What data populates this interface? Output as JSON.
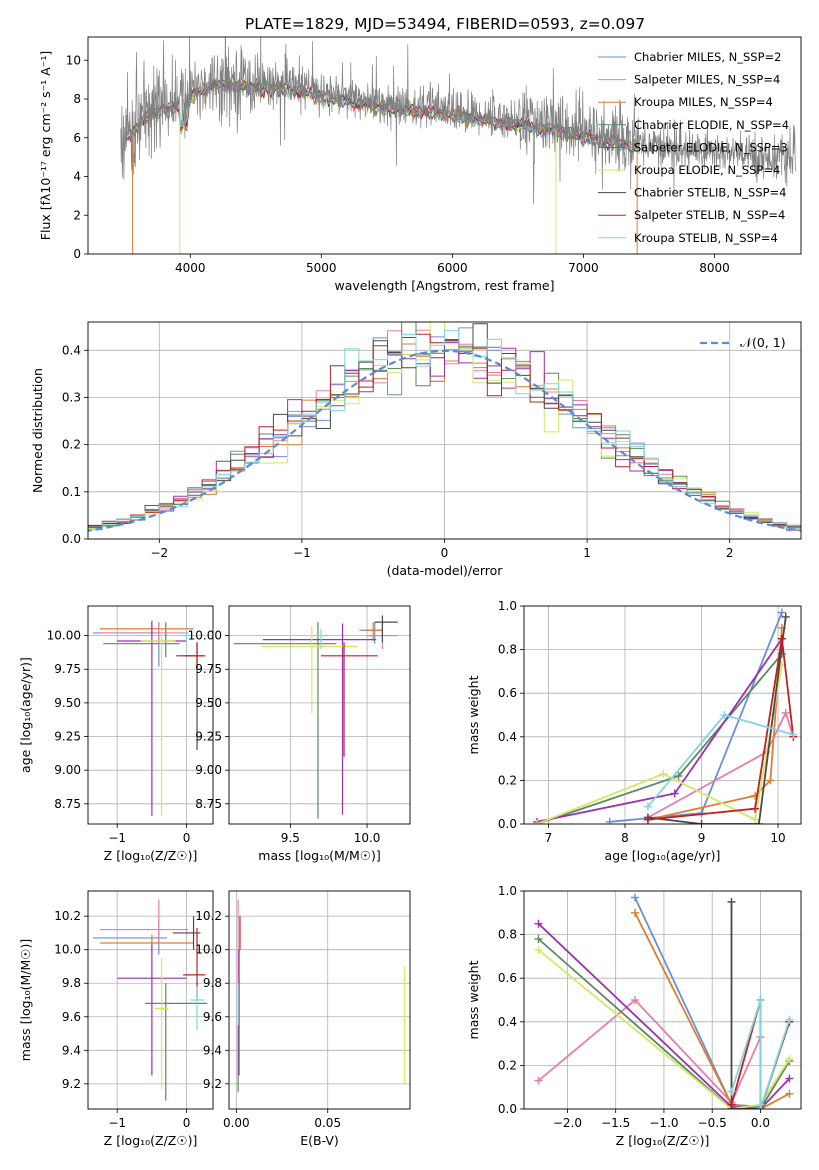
{
  "title": "PLATE=1829, MJD=53494, FIBERID=0593, z=0.097",
  "chart_data": [
    {
      "type": "line",
      "id": "spectrum",
      "title": "PLATE=1829, MJD=53494, FIBERID=0593, z=0.097",
      "xlabel": "wavelength [Angstrom, rest frame]",
      "ylabel": "Flux [fλ10⁻¹⁷ erg cm⁻² s⁻¹ A⁻¹]",
      "xlim": [
        3220,
        8660
      ],
      "ylim": [
        0,
        11.2
      ],
      "xticks": [
        4000,
        5000,
        6000,
        7000,
        8000
      ],
      "yticks": [
        0,
        2,
        4,
        6,
        8,
        10
      ],
      "legend": "top-right",
      "continuum": {
        "x": [
          3470,
          3550,
          3650,
          3800,
          3950,
          4050,
          4200,
          4400,
          4600,
          4800,
          5000,
          5200,
          5400,
          5600,
          5800,
          6000,
          6200,
          6400,
          6600,
          6800,
          7000,
          7200,
          7400,
          7600,
          7800,
          8000,
          8200,
          8400,
          8620
        ],
        "y": [
          6.1,
          6.4,
          7.3,
          7.7,
          8.0,
          8.6,
          9.0,
          8.9,
          8.8,
          8.7,
          8.4,
          8.1,
          7.9,
          7.7,
          7.6,
          7.4,
          7.2,
          7.0,
          6.8,
          6.6,
          6.3,
          6.0,
          5.8,
          5.6,
          5.4,
          5.3,
          5.1,
          5.0,
          4.9
        ]
      },
      "data_xrange": [
        3470,
        8620
      ],
      "model_xrange": [
        3500,
        7420
      ],
      "series": [
        {
          "name": "Chabrier MILES, N_SSP=2",
          "color": "#6a8fd8"
        },
        {
          "name": "Salpeter MILES, N_SSP=4",
          "color": "#e87ea8"
        },
        {
          "name": "Kroupa MILES, N_SSP=4",
          "color": "#e07d2c"
        },
        {
          "name": "Chabrier ELODIE, N_SSP=4",
          "color": "#5a8a5e"
        },
        {
          "name": "Salpeter ELODIE, N_SSP=3",
          "color": "#9b30b0"
        },
        {
          "name": "Kroupa ELODIE, N_SSP=4",
          "color": "#d4e864"
        },
        {
          "name": "Chabrier STELIB, N_SSP=4",
          "color": "#4a4a4a"
        },
        {
          "name": "Salpeter STELIB, N_SSP=4",
          "color": "#c02020"
        },
        {
          "name": "Kroupa STELIB, N_SSP=4",
          "color": "#7fd6de"
        }
      ]
    },
    {
      "type": "histogram",
      "id": "residuals",
      "xlabel": "(data-model)/error",
      "ylabel": "Normed distribution",
      "xlim": [
        -2.5,
        2.5
      ],
      "ylim": [
        0,
        0.46
      ],
      "xticks": [
        -2,
        -1,
        0,
        1,
        2
      ],
      "yticks": [
        0.0,
        0.1,
        0.2,
        0.3,
        0.4
      ],
      "bin_width": 0.1,
      "grid": true,
      "legend": "top-right",
      "reference": {
        "name": "𝒩(0, 1)",
        "color": "#5b8ad1",
        "style": "dashed"
      }
    },
    {
      "type": "scatter",
      "id": "age_vs_z",
      "xlabel": "Z [log₁₀(Z/Z☉)]",
      "ylabel": "age  [log₁₀(age/yr)]",
      "xlim": [
        -1.42,
        0.38
      ],
      "ylim": [
        8.6,
        10.22
      ],
      "xticks": [
        -1,
        0
      ],
      "yticks": [
        8.75,
        9.0,
        9.25,
        9.5,
        9.75,
        10.0
      ],
      "grid": true,
      "points": [
        {
          "x": -0.3,
          "y": 9.94,
          "xerr": [
            0.9,
            0.2
          ],
          "yerr": [
            0.1,
            0.16
          ],
          "color": "#5a8a5e"
        },
        {
          "x": -0.4,
          "y": 10.02,
          "xerr": [
            0.95,
            0.12
          ],
          "yerr": [
            0.25,
            0.08
          ],
          "color": "#6a8fd8"
        },
        {
          "x": -0.4,
          "y": 10.02,
          "xerr": [
            0.85,
            0.42
          ],
          "yerr": [
            0.1,
            0.08
          ],
          "color": "#e87ea8"
        },
        {
          "x": -0.5,
          "y": 10.05,
          "xerr": [
            0.75,
            0.6
          ],
          "yerr": [
            0.05,
            0.05
          ],
          "color": "#e07d2c"
        },
        {
          "x": -0.5,
          "y": 9.96,
          "xerr": [
            0.5,
            0.5
          ],
          "yerr": [
            1.3,
            0.15
          ],
          "color": "#9b30b0"
        },
        {
          "x": -0.36,
          "y": 9.96,
          "xerr": [
            0.3,
            0.2
          ],
          "yerr": [
            1.3,
            0.08
          ],
          "color": "#d4e864"
        },
        {
          "x": 0.15,
          "y": 9.85,
          "xerr": [
            0.3,
            0.1
          ],
          "yerr": [
            0.7,
            0.1
          ],
          "color": "#4a4a4a"
        },
        {
          "x": 0.15,
          "y": 9.85,
          "xerr": [
            0.2,
            0.12
          ],
          "yerr": [
            0.1,
            0.1
          ],
          "color": "#c02020"
        },
        {
          "x": 0.0,
          "y": 10.0,
          "xerr": [
            0.1,
            0.1
          ],
          "yerr": [
            0.05,
            0.05
          ],
          "color": "#7fd6de"
        }
      ]
    },
    {
      "type": "scatter",
      "id": "age_vs_mass",
      "xlabel": "mass [log₁₀(M/M☉)]",
      "ylabel": "",
      "xlim": [
        9.1,
        10.28
      ],
      "ylim": [
        8.6,
        10.22
      ],
      "xticks": [
        9.5,
        10.0
      ],
      "yticks": [
        8.75,
        9.0,
        9.25,
        9.5,
        9.75,
        10.0
      ],
      "grid": true,
      "points": [
        {
          "x": 9.68,
          "y": 9.94,
          "xerr": [
            0.55,
            0.12
          ],
          "yerr": [
            1.3,
            0.16
          ],
          "color": "#5a8a5e"
        },
        {
          "x": 10.05,
          "y": 10.04,
          "xerr": [
            0.1,
            0.05
          ],
          "yerr": [
            0.1,
            0.06
          ],
          "color": "#6a8fd8"
        },
        {
          "x": 10.1,
          "y": 10.0,
          "xerr": [
            0.1,
            0.1
          ],
          "yerr": [
            0.1,
            0.07
          ],
          "color": "#e87ea8"
        },
        {
          "x": 10.04,
          "y": 10.04,
          "xerr": [
            0.06,
            0.06
          ],
          "yerr": [
            0.08,
            0.06
          ],
          "color": "#e07d2c"
        },
        {
          "x": 9.84,
          "y": 9.97,
          "xerr": [
            0.52,
            0.22
          ],
          "yerr": [
            1.3,
            0.12
          ],
          "color": "#9b30b0"
        },
        {
          "x": 9.64,
          "y": 9.92,
          "xerr": [
            0.33,
            0.3
          ],
          "yerr": [
            0.5,
            0.15
          ],
          "color": "#d4e864"
        },
        {
          "x": 10.1,
          "y": 10.1,
          "xerr": [
            0.05,
            0.1
          ],
          "yerr": [
            0.15,
            0.05
          ],
          "color": "#4a4a4a"
        },
        {
          "x": 9.85,
          "y": 9.85,
          "xerr": [
            0.15,
            0.22
          ],
          "yerr": [
            0.75,
            0.1
          ],
          "color": "#c02020"
        },
        {
          "x": 9.7,
          "y": 10.0,
          "xerr": [
            0.05,
            0.05
          ],
          "yerr": [
            0.1,
            0.05
          ],
          "color": "#7fd6de"
        }
      ]
    },
    {
      "type": "line",
      "id": "weight_vs_age",
      "xlabel": "age  [log₁₀(age/yr)]",
      "ylabel": "mass weight",
      "xlim": [
        6.68,
        10.3
      ],
      "ylim": [
        0,
        1.0
      ],
      "xticks": [
        7,
        8,
        9,
        10
      ],
      "yticks": [
        0.0,
        0.2,
        0.4,
        0.6,
        0.8,
        1.0
      ],
      "grid": true,
      "series": [
        {
          "color": "#6a8fd8",
          "x": [
            7.8,
            9.0,
            10.05
          ],
          "y": [
            0.01,
            0.05,
            0.97
          ]
        },
        {
          "color": "#e87ea8",
          "x": [
            8.3,
            9.85,
            10.1,
            10.2
          ],
          "y": [
            0.03,
            0.33,
            0.51,
            0.4
          ]
        },
        {
          "color": "#e07d2c",
          "x": [
            8.3,
            9.7,
            9.9,
            10.05
          ],
          "y": [
            0.02,
            0.13,
            0.2,
            0.9
          ]
        },
        {
          "color": "#5a8a5e",
          "x": [
            6.85,
            8.7,
            10.05
          ],
          "y": [
            0.0,
            0.22,
            0.78
          ]
        },
        {
          "color": "#9b30b0",
          "x": [
            6.85,
            8.65,
            10.05
          ],
          "y": [
            0.01,
            0.14,
            0.85
          ]
        },
        {
          "color": "#d4e864",
          "x": [
            6.85,
            8.5,
            9.7,
            10.05
          ],
          "y": [
            0.0,
            0.23,
            0.02,
            0.73
          ]
        },
        {
          "color": "#4a4a4a",
          "x": [
            8.3,
            9.0,
            9.75,
            10.1
          ],
          "y": [
            0.03,
            0.0,
            0.0,
            0.95
          ]
        },
        {
          "color": "#c02020",
          "x": [
            8.3,
            9.7,
            10.05,
            10.2
          ],
          "y": [
            0.02,
            0.07,
            0.85,
            0.4
          ]
        },
        {
          "color": "#7fd6de",
          "x": [
            8.3,
            9.3,
            10.2
          ],
          "y": [
            0.08,
            0.5,
            0.41
          ]
        }
      ]
    },
    {
      "type": "scatter",
      "id": "mass_vs_z",
      "xlabel": "Z [log₁₀(Z/Z☉)]",
      "ylabel": "mass [log₁₀(M/M☉)]",
      "xlim": [
        -1.42,
        0.38
      ],
      "ylim": [
        9.05,
        10.35
      ],
      "xticks": [
        -1,
        0
      ],
      "yticks": [
        9.2,
        9.4,
        9.6,
        9.8,
        10.0,
        10.2
      ],
      "grid": true,
      "points": [
        {
          "x": -0.3,
          "y": 9.68,
          "xerr": [
            0.3,
            0.6
          ],
          "yerr": [
            0.58,
            0.12
          ],
          "color": "#5a8a5e"
        },
        {
          "x": -0.4,
          "y": 10.07,
          "xerr": [
            0.95,
            0.12
          ],
          "yerr": [
            0.1,
            0.1
          ],
          "color": "#6a8fd8"
        },
        {
          "x": -0.4,
          "y": 10.12,
          "xerr": [
            0.85,
            0.42
          ],
          "yerr": [
            0.1,
            0.18
          ],
          "color": "#e87ea8"
        },
        {
          "x": -0.5,
          "y": 10.04,
          "xerr": [
            0.75,
            0.6
          ],
          "yerr": [
            0.05,
            0.05
          ],
          "color": "#e07d2c"
        },
        {
          "x": -0.5,
          "y": 9.83,
          "xerr": [
            0.5,
            0.5
          ],
          "yerr": [
            0.58,
            0.2
          ],
          "color": "#9b30b0"
        },
        {
          "x": -0.36,
          "y": 9.65,
          "xerr": [
            0.1,
            0.1
          ],
          "yerr": [
            0.48,
            0.3
          ],
          "color": "#d4e864"
        },
        {
          "x": 0.1,
          "y": 10.1,
          "xerr": [
            0.3,
            0.1
          ],
          "yerr": [
            0.1,
            0.1
          ],
          "color": "#4a4a4a"
        },
        {
          "x": 0.15,
          "y": 9.85,
          "xerr": [
            0.2,
            0.12
          ],
          "yerr": [
            0.15,
            0.28
          ],
          "color": "#c02020"
        },
        {
          "x": 0.15,
          "y": 9.7,
          "xerr": [
            0.1,
            0.1
          ],
          "yerr": [
            0.18,
            0.08
          ],
          "color": "#7fd6de"
        }
      ]
    },
    {
      "type": "scatter",
      "id": "mass_vs_ebv",
      "xlabel": "E(B-V)",
      "ylabel": "",
      "xlim": [
        -0.004,
        0.095
      ],
      "ylim": [
        9.05,
        10.35
      ],
      "xticks": [
        0.0,
        0.05
      ],
      "yticks": [
        9.2,
        9.4,
        9.6,
        9.8,
        10.0,
        10.2
      ],
      "grid": true,
      "points": [
        {
          "x": 0.001,
          "y": 9.7,
          "xerr": [
            0,
            0
          ],
          "yerr": [
            0.55,
            0.3
          ],
          "color": "#5a8a5e"
        },
        {
          "x": 0.001,
          "y": 10.0,
          "xerr": [
            0,
            0
          ],
          "yerr": [
            0.45,
            0.3
          ],
          "color": "#e87ea8"
        },
        {
          "x": 0.0015,
          "y": 9.8,
          "xerr": [
            0,
            0
          ],
          "yerr": [
            0.55,
            0.2
          ],
          "color": "#9b30b0"
        },
        {
          "x": 0.002,
          "y": 10.1,
          "xerr": [
            0,
            0
          ],
          "yerr": [
            0.1,
            0.1
          ],
          "color": "#c02020"
        },
        {
          "x": 0.001,
          "y": 9.65,
          "xerr": [
            0,
            0
          ],
          "yerr": [
            0.1,
            0.15
          ],
          "color": "#7fd6de"
        },
        {
          "x": 0.092,
          "y": 9.55,
          "xerr": [
            0,
            0
          ],
          "yerr": [
            0.35,
            0.35
          ],
          "color": "#d4e864"
        }
      ]
    },
    {
      "type": "line",
      "id": "weight_vs_z",
      "xlabel": "Z [log₁₀(Z/Z☉)]",
      "ylabel": "mass weight",
      "xlim": [
        -2.45,
        0.42
      ],
      "ylim": [
        0,
        1.0
      ],
      "xticks": [
        -2.0,
        -1.5,
        -1.0,
        -0.5,
        0.0
      ],
      "yticks": [
        0.0,
        0.2,
        0.4,
        0.6,
        0.8,
        1.0
      ],
      "grid": true,
      "series": [
        {
          "color": "#6a8fd8",
          "x": [
            -1.3,
            -0.3,
            0.0
          ],
          "y": [
            0.97,
            0.02,
            0.01
          ]
        },
        {
          "color": "#e87ea8",
          "x": [
            -2.3,
            -1.3,
            -0.3,
            0.0
          ],
          "y": [
            0.13,
            0.5,
            0.03,
            0.33
          ]
        },
        {
          "color": "#e07d2c",
          "x": [
            -1.3,
            -0.3,
            0.0,
            0.3
          ],
          "y": [
            0.9,
            0.02,
            0.0,
            0.07
          ]
        },
        {
          "color": "#5a8a5e",
          "x": [
            -2.3,
            -0.3,
            0.0,
            0.3
          ],
          "y": [
            0.78,
            0.0,
            0.0,
            0.22
          ]
        },
        {
          "color": "#9b30b0",
          "x": [
            -2.3,
            -0.3,
            0.0,
            0.3
          ],
          "y": [
            0.85,
            0.01,
            0.0,
            0.14
          ]
        },
        {
          "color": "#d4e864",
          "x": [
            -2.3,
            -0.3,
            0.0,
            0.3
          ],
          "y": [
            0.73,
            0.0,
            0.02,
            0.23
          ]
        },
        {
          "color": "#4a4a4a",
          "x": [
            -0.3,
            -0.3,
            0.0,
            0.3
          ],
          "y": [
            0.95,
            0.0,
            0.0,
            0.4
          ]
        },
        {
          "color": "#c02020",
          "x": [
            -0.3,
            0.0,
            0.0,
            0.3
          ],
          "y": [
            0.02,
            0.5,
            0.0,
            0.4
          ]
        },
        {
          "color": "#7fd6de",
          "x": [
            -0.3,
            0.0,
            0.0,
            0.3
          ],
          "y": [
            0.08,
            0.5,
            0.0,
            0.41
          ]
        }
      ]
    }
  ]
}
